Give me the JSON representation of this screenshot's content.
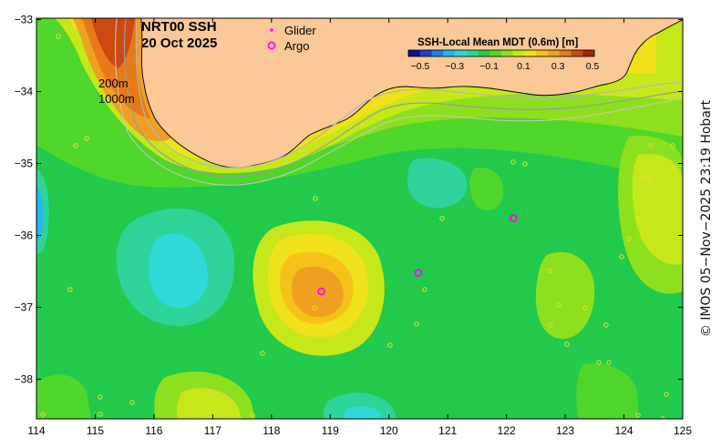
{
  "title": {
    "line1": "NRT00 SSH",
    "line2": "20 Oct 2025"
  },
  "legend": {
    "glider_label": "Glider",
    "argo_label": "Argo",
    "glider_color": "#ff00ff",
    "argo_color": "#ff00ff"
  },
  "colorbar": {
    "title": "SSH-Local Mean MDT (0.6m) [m]",
    "tick_labels": [
      "−0.5",
      "−0.3",
      "−0.1",
      "0.1",
      "0.3",
      "0.5"
    ],
    "colors": [
      "#0d0d8c",
      "#1a44c4",
      "#1f7ff0",
      "#22b8f0",
      "#30d8d8",
      "#2ed39a",
      "#22c94a",
      "#4fd62a",
      "#8de01e",
      "#c6e81a",
      "#f0e21a",
      "#f5c21a",
      "#f0a020",
      "#e67a18",
      "#cc4a10",
      "#a82208"
    ]
  },
  "isobaths": {
    "label_200": "200m",
    "label_1000": "1000m"
  },
  "axes": {
    "x_ticks": [
      "114",
      "115",
      "116",
      "117",
      "118",
      "119",
      "120",
      "121",
      "122",
      "123",
      "124",
      "125"
    ],
    "y_ticks": [
      "−33",
      "−34",
      "−35",
      "−36",
      "−37",
      "−38"
    ],
    "lon_range": [
      114,
      125
    ],
    "lat_range": [
      -38.55,
      -32.98
    ]
  },
  "credit": "© IMOS 05−Nov−2025 23:19 Hobart",
  "land_color": "#fbc898",
  "argo_floats": [
    {
      "lon": 118.85,
      "lat": -36.78
    },
    {
      "lon": 120.5,
      "lat": -36.52
    },
    {
      "lon": 122.12,
      "lat": -35.76
    }
  ]
}
